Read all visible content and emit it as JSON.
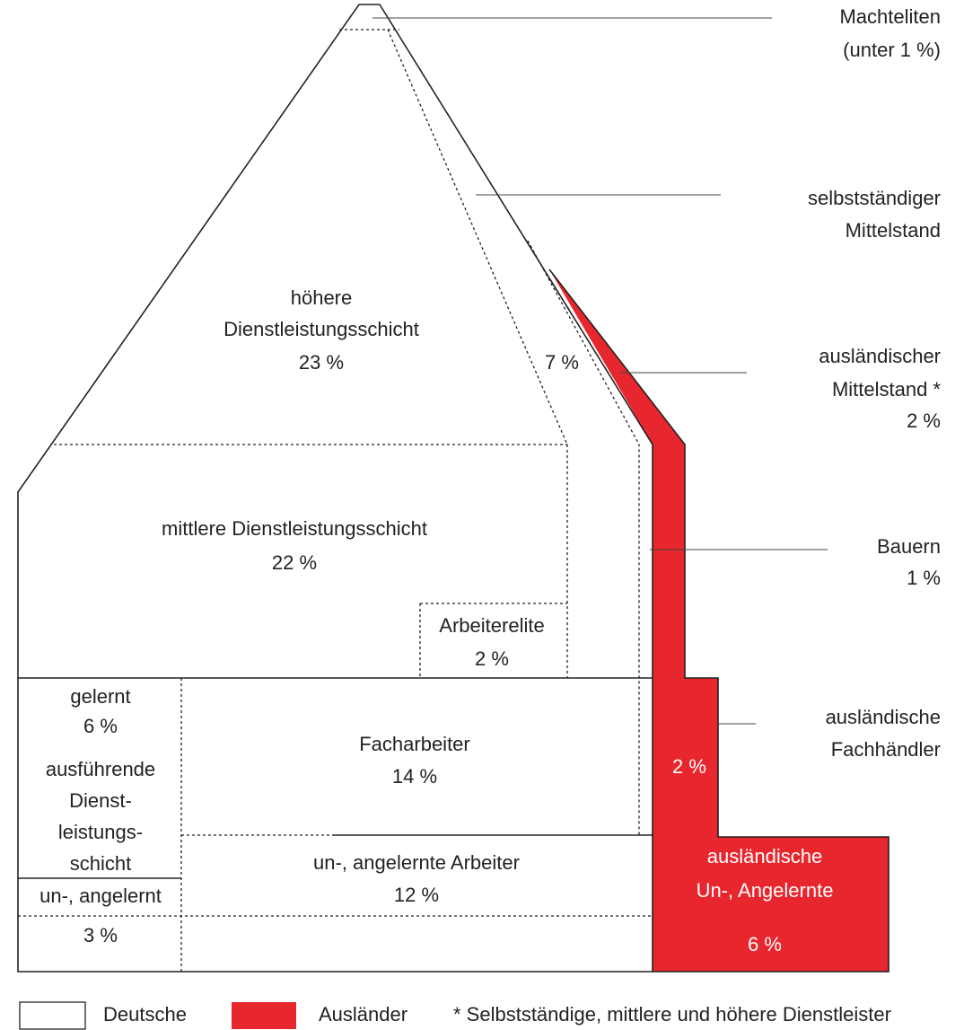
{
  "regions": {
    "hoehere": {
      "lines": [
        "höhere",
        "Dienstleistungsschicht",
        "23 %"
      ]
    },
    "selbst": {
      "label": "7 %"
    },
    "mittlere": {
      "lines": [
        "mittlere Dienstleistungsschicht",
        "22 %"
      ]
    },
    "arbeiterelite": {
      "lines": [
        "Arbeiterelite",
        "2 %"
      ]
    },
    "ausfuehrende": {
      "lines": [
        "gelernt",
        "6 %",
        "ausführende",
        "Dienst-",
        "leistungs-",
        "schicht"
      ]
    },
    "ungelernt": {
      "lines": [
        "un-, angelernt",
        "3 %"
      ]
    },
    "facharbeiter": {
      "lines": [
        "Facharbeiter",
        "14 %"
      ]
    },
    "arbeiter": {
      "lines": [
        "un-, angelernte Arbeiter",
        "12 %"
      ]
    },
    "fachhaendler": {
      "label": "2 %"
    },
    "auslUngelernt": {
      "lines": [
        "ausländische",
        "Un-, Angelernte",
        "6 %"
      ]
    }
  },
  "side_labels": [
    {
      "lines": [
        "Machteliten",
        "(unter 1 %)"
      ]
    },
    {
      "lines": [
        "selbstständiger",
        "Mittelstand"
      ]
    },
    {
      "lines": [
        "ausländischer",
        "Mittelstand *",
        "2 %"
      ]
    },
    {
      "lines": [
        "Bauern",
        "1 %"
      ]
    },
    {
      "lines": [
        "ausländische",
        "Fachhändler"
      ]
    }
  ],
  "legend": {
    "items": [
      "Deutsche",
      "Ausländer"
    ],
    "note": "* Selbstständige, mittlere und höhere Dienstleister"
  }
}
